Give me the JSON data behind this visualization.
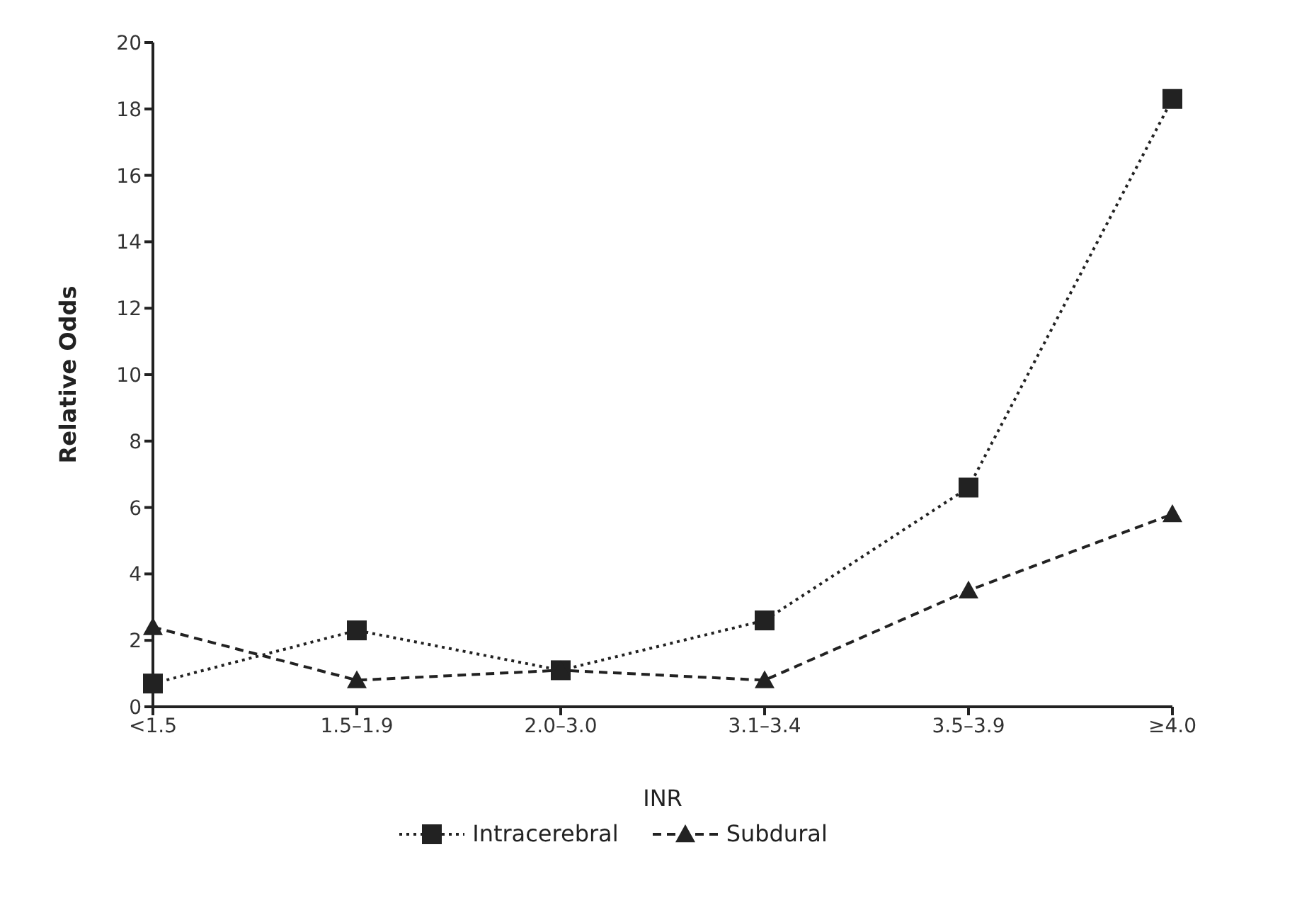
{
  "chart_data": {
    "type": "line",
    "xlabel": "INR",
    "ylabel": "Relative Odds",
    "categories": [
      "<1.5",
      "1.5–1.9",
      "2.0–3.0",
      "3.1–3.4",
      "3.5–3.9",
      "≥4.0"
    ],
    "series": [
      {
        "name": "Intracerebral",
        "color": "#222222",
        "marker": "square",
        "line_style": "dotted",
        "values": [
          0.7,
          2.3,
          1.1,
          2.6,
          6.6,
          18.3
        ]
      },
      {
        "name": "Subdural",
        "color": "#222222",
        "marker": "triangle",
        "line_style": "dashed",
        "values": [
          2.4,
          0.8,
          1.1,
          0.8,
          3.5,
          5.8
        ]
      }
    ],
    "ylim": [
      0,
      20
    ],
    "yticks": [
      0,
      2,
      4,
      6,
      8,
      10,
      12,
      14,
      16,
      18,
      20
    ],
    "grid": false,
    "legend": "bottom"
  }
}
